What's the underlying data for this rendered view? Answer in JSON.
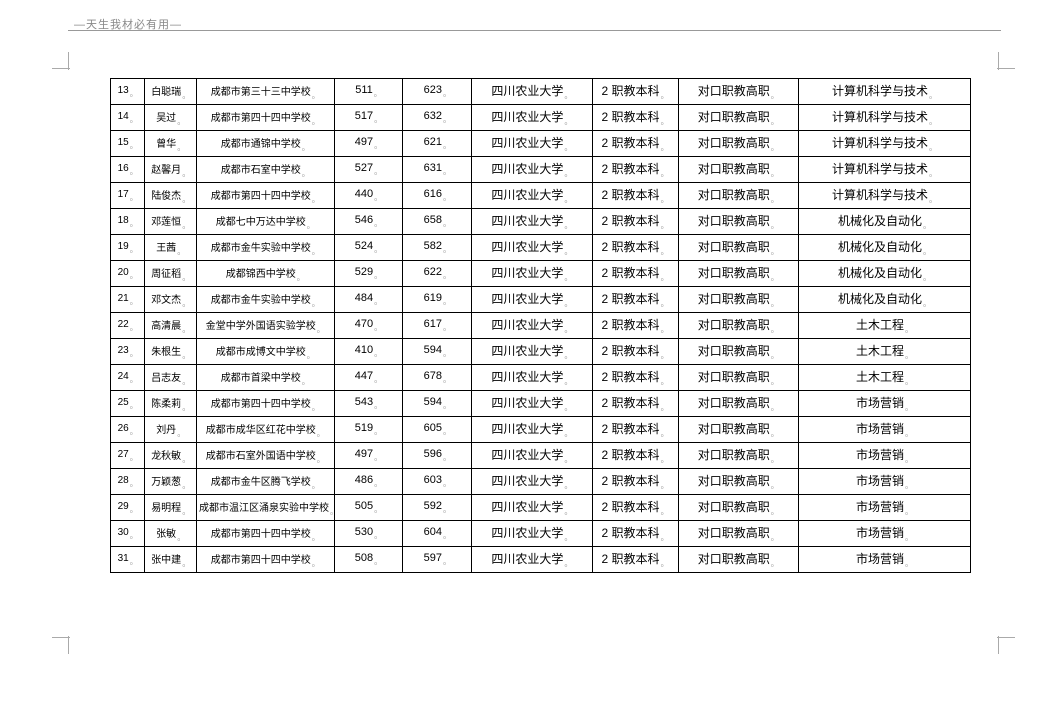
{
  "header": "—天生我材必有用—",
  "table": {
    "columns": 9,
    "rows": [
      [
        "13",
        "白聪瑞",
        "成都市第三十三中学校",
        "511",
        "623",
        "四川农业大学",
        "2 职教本科",
        "对口职教高职",
        "计算机科学与技术"
      ],
      [
        "14",
        "吴过",
        "成都市第四十四中学校",
        "517",
        "632",
        "四川农业大学",
        "2 职教本科",
        "对口职教高职",
        "计算机科学与技术"
      ],
      [
        "15",
        "曾华",
        "成都市通锦中学校",
        "497",
        "621",
        "四川农业大学",
        "2 职教本科",
        "对口职教高职",
        "计算机科学与技术"
      ],
      [
        "16",
        "赵馨月",
        "成都市石室中学校",
        "527",
        "631",
        "四川农业大学",
        "2 职教本科",
        "对口职教高职",
        "计算机科学与技术"
      ],
      [
        "17",
        "陆俊杰",
        "成都市第四十四中学校",
        "440",
        "616",
        "四川农业大学",
        "2 职教本科",
        "对口职教高职",
        "计算机科学与技术"
      ],
      [
        "18",
        "邓莲恒",
        "成都七中万达中学校",
        "546",
        "658",
        "四川农业大学",
        "2 职教本科",
        "对口职教高职",
        "机械化及自动化"
      ],
      [
        "19",
        "王茜",
        "成都市金牛实验中学校",
        "524",
        "582",
        "四川农业大学",
        "2 职教本科",
        "对口职教高职",
        "机械化及自动化"
      ],
      [
        "20",
        "周征稻",
        "成都锦西中学校",
        "529",
        "622",
        "四川农业大学",
        "2 职教本科",
        "对口职教高职",
        "机械化及自动化"
      ],
      [
        "21",
        "邓文杰",
        "成都市金牛实验中学校",
        "484",
        "619",
        "四川农业大学",
        "2 职教本科",
        "对口职教高职",
        "机械化及自动化"
      ],
      [
        "22",
        "高清晨",
        "金堂中学外国语实验学校",
        "470",
        "617",
        "四川农业大学",
        "2 职教本科",
        "对口职教高职",
        "土木工程"
      ],
      [
        "23",
        "朱根生",
        "成都市成博文中学校",
        "410",
        "594",
        "四川农业大学",
        "2 职教本科",
        "对口职教高职",
        "土木工程"
      ],
      [
        "24",
        "吕志友",
        "成都市首梁中学校",
        "447",
        "678",
        "四川农业大学",
        "2 职教本科",
        "对口职教高职",
        "土木工程"
      ],
      [
        "25",
        "陈柔莉",
        "成都市第四十四中学校",
        "543",
        "594",
        "四川农业大学",
        "2 职教本科",
        "对口职教高职",
        "市场营销"
      ],
      [
        "26",
        "刘丹",
        "成都市成华区红花中学校",
        "519",
        "605",
        "四川农业大学",
        "2 职教本科",
        "对口职教高职",
        "市场营销"
      ],
      [
        "27",
        "龙秋敏",
        "成都市石室外国语中学校",
        "497",
        "596",
        "四川农业大学",
        "2 职教本科",
        "对口职教高职",
        "市场营销"
      ],
      [
        "28",
        "万颖葱",
        "成都市金牛区腾飞学校",
        "486",
        "603",
        "四川农业大学",
        "2 职教本科",
        "对口职教高职",
        "市场营销"
      ],
      [
        "29",
        "易明程",
        "成都市温江区涌泉实验中学校",
        "505",
        "592",
        "四川农业大学",
        "2 职教本科",
        "对口职教高职",
        "市场营销"
      ],
      [
        "30",
        "张敏",
        "成都市第四十四中学校",
        "530",
        "604",
        "四川农业大学",
        "2 职教本科",
        "对口职教高职",
        "市场营销"
      ],
      [
        "31",
        "张中建",
        "成都市第四十四中学校",
        "508",
        "597",
        "四川农业大学",
        "2 职教本科",
        "对口职教高职",
        "市场营销"
      ]
    ]
  }
}
